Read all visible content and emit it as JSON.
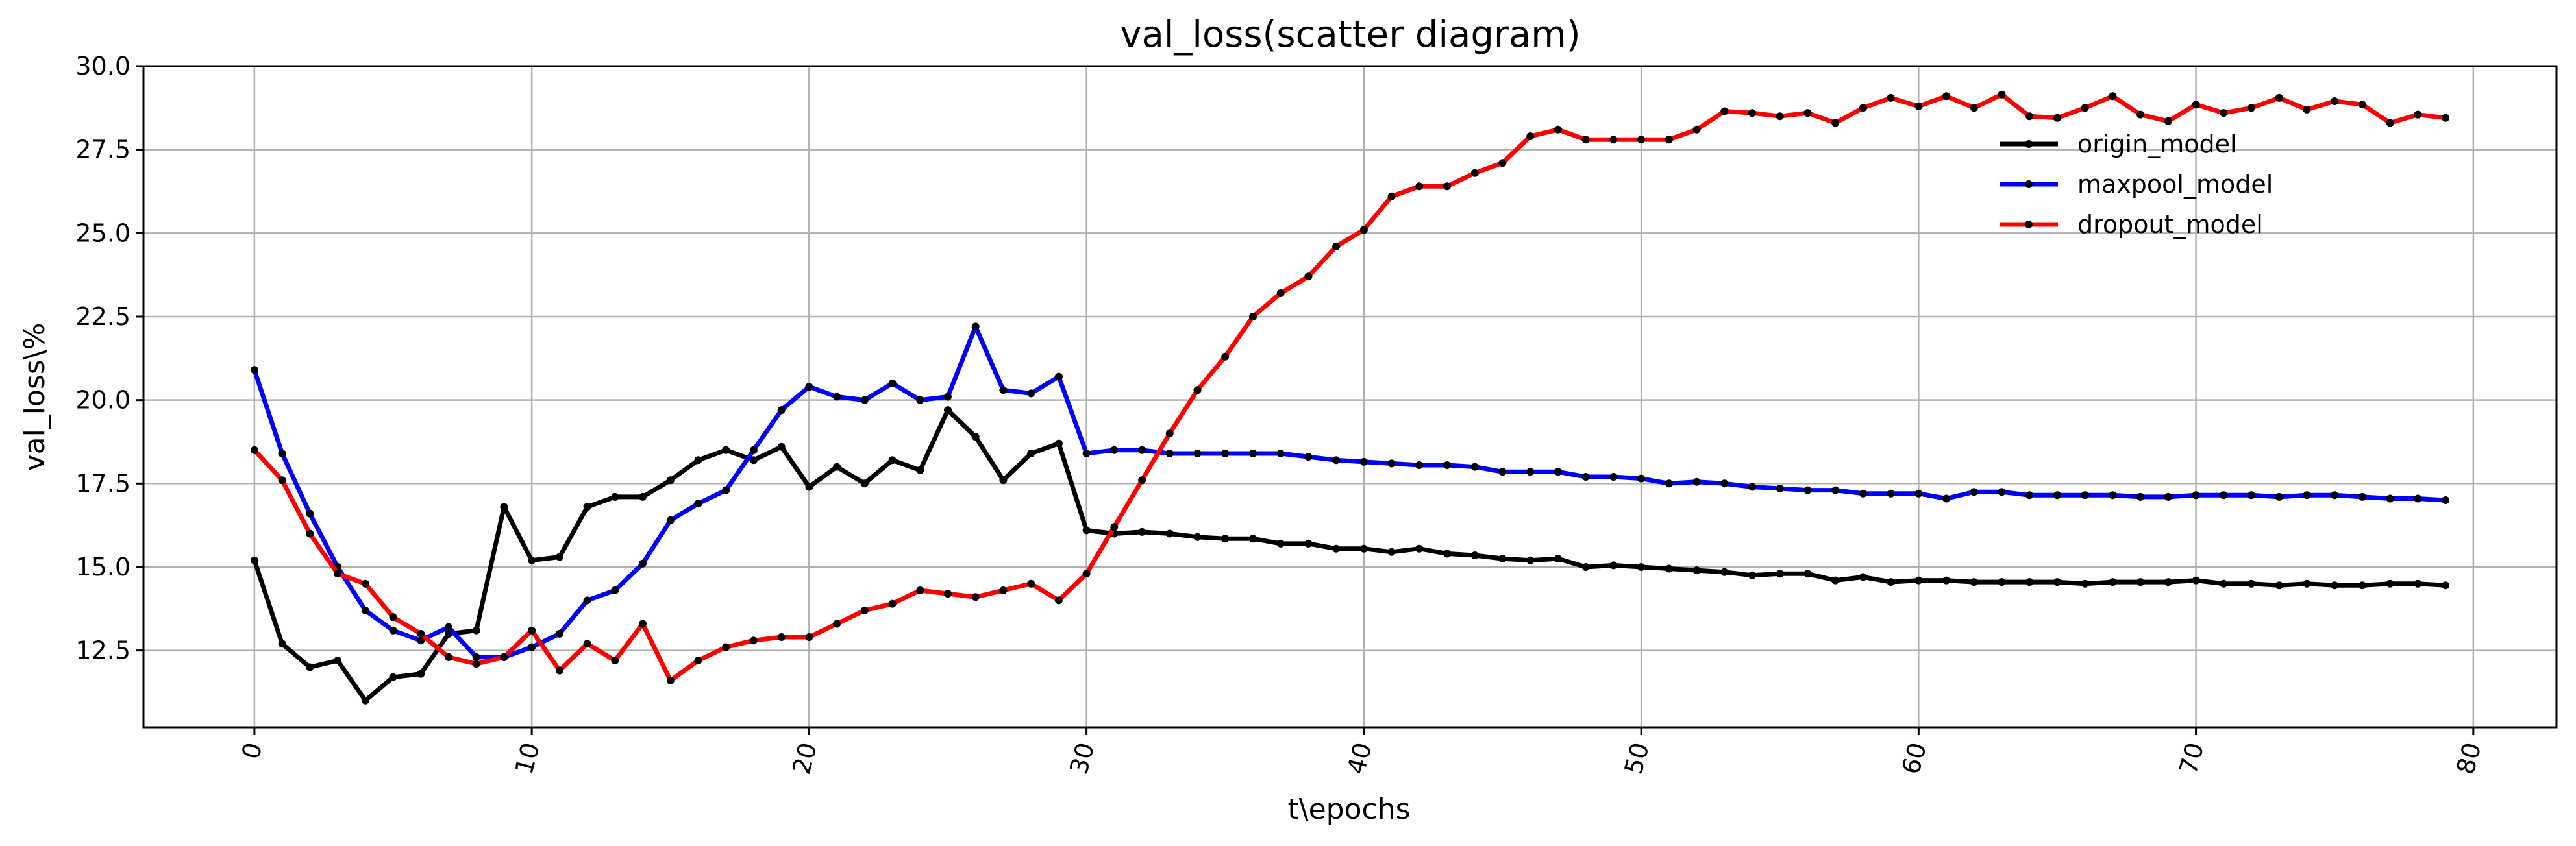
{
  "chart_data": {
    "type": "line",
    "title": "val_loss(scatter diagram)",
    "xlabel": "t\\epochs",
    "ylabel": "val_loss\\%",
    "xlim": [
      -4,
      83
    ],
    "ylim": [
      10.2,
      30.0
    ],
    "xticks": [
      0,
      10,
      20,
      30,
      40,
      50,
      60,
      70,
      80
    ],
    "yticks": [
      12.5,
      15.0,
      17.5,
      20.0,
      22.5,
      25.0,
      27.5,
      30.0
    ],
    "grid": true,
    "legend_position": "upper-right",
    "x": [
      0,
      1,
      2,
      3,
      4,
      5,
      6,
      7,
      8,
      9,
      10,
      11,
      12,
      13,
      14,
      15,
      16,
      17,
      18,
      19,
      20,
      21,
      22,
      23,
      24,
      25,
      26,
      27,
      28,
      29,
      30,
      31,
      32,
      33,
      34,
      35,
      36,
      37,
      38,
      39,
      40,
      41,
      42,
      43,
      44,
      45,
      46,
      47,
      48,
      49,
      50,
      51,
      52,
      53,
      54,
      55,
      56,
      57,
      58,
      59,
      60,
      61,
      62,
      63,
      64,
      65,
      66,
      67,
      68,
      69,
      70,
      71,
      72,
      73,
      74,
      75,
      76,
      77,
      78,
      79
    ],
    "series": [
      {
        "name": "origin_model",
        "color": "#000000",
        "values": [
          15.2,
          12.7,
          12.0,
          12.2,
          11.0,
          11.7,
          11.8,
          13.0,
          13.1,
          16.8,
          15.2,
          15.3,
          16.8,
          17.1,
          17.1,
          17.6,
          18.2,
          18.5,
          18.2,
          18.6,
          17.4,
          18.0,
          17.5,
          18.2,
          17.9,
          19.7,
          18.9,
          17.6,
          18.4,
          18.7,
          16.1,
          16.0,
          16.05,
          16.0,
          15.9,
          15.85,
          15.85,
          15.7,
          15.7,
          15.55,
          15.55,
          15.45,
          15.55,
          15.4,
          15.35,
          15.25,
          15.2,
          15.25,
          15.0,
          15.05,
          15.0,
          14.95,
          14.9,
          14.85,
          14.75,
          14.8,
          14.8,
          14.6,
          14.7,
          14.55,
          14.6,
          14.6,
          14.55,
          14.55,
          14.55,
          14.55,
          14.5,
          14.55,
          14.55,
          14.55,
          14.6,
          14.5,
          14.5,
          14.45,
          14.5,
          14.45,
          14.45,
          14.5,
          14.5,
          14.45
        ]
      },
      {
        "name": "maxpool_model",
        "color": "#0000ff",
        "values": [
          20.9,
          18.4,
          16.6,
          15.0,
          13.7,
          13.1,
          12.8,
          13.2,
          12.3,
          12.3,
          12.6,
          13.0,
          14.0,
          14.3,
          15.1,
          16.4,
          16.9,
          17.3,
          18.5,
          19.7,
          20.4,
          20.1,
          20.0,
          20.5,
          20.0,
          20.1,
          22.2,
          20.3,
          20.2,
          20.7,
          18.4,
          18.5,
          18.5,
          18.4,
          18.4,
          18.4,
          18.4,
          18.4,
          18.3,
          18.2,
          18.15,
          18.1,
          18.05,
          18.05,
          18.0,
          17.85,
          17.85,
          17.85,
          17.7,
          17.7,
          17.65,
          17.5,
          17.55,
          17.5,
          17.4,
          17.35,
          17.3,
          17.3,
          17.2,
          17.2,
          17.2,
          17.05,
          17.25,
          17.25,
          17.15,
          17.15,
          17.15,
          17.15,
          17.1,
          17.1,
          17.15,
          17.15,
          17.15,
          17.1,
          17.15,
          17.15,
          17.1,
          17.05,
          17.05,
          17.0
        ]
      },
      {
        "name": "dropout_model",
        "color": "#ff0000",
        "values": [
          18.5,
          17.6,
          16.0,
          14.8,
          14.5,
          13.5,
          13.0,
          12.3,
          12.1,
          12.3,
          13.1,
          11.9,
          12.7,
          12.2,
          13.3,
          11.6,
          12.2,
          12.6,
          12.8,
          12.9,
          12.9,
          13.3,
          13.7,
          13.9,
          14.3,
          14.2,
          14.1,
          14.3,
          14.5,
          14.0,
          14.8,
          16.2,
          17.6,
          19.0,
          20.3,
          21.3,
          22.5,
          23.2,
          23.7,
          24.6,
          25.1,
          26.1,
          26.4,
          26.4,
          26.8,
          27.1,
          27.9,
          28.1,
          27.8,
          27.8,
          27.8,
          27.8,
          28.1,
          28.65,
          28.6,
          28.5,
          28.6,
          28.3,
          28.75,
          29.05,
          28.8,
          29.1,
          28.75,
          29.15,
          28.5,
          28.45,
          28.75,
          29.1,
          28.55,
          28.35,
          28.85,
          28.6,
          28.75,
          29.05,
          28.7,
          28.95,
          28.85,
          28.3,
          28.55,
          28.45
        ]
      }
    ]
  }
}
